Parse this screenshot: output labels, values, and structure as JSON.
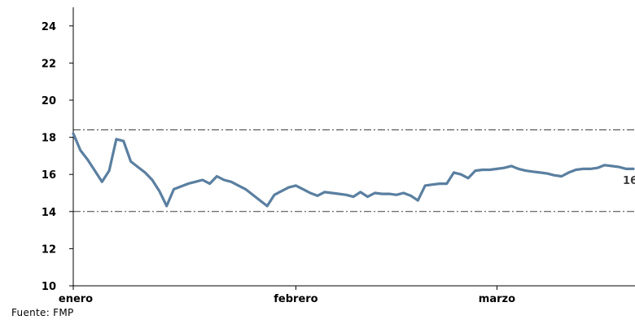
{
  "chart_data": {
    "type": "line",
    "title": "",
    "xlabel": "",
    "ylabel": "",
    "ylim": [
      10,
      25
    ],
    "yticks": [
      10,
      12,
      14,
      16,
      18,
      20,
      22,
      24
    ],
    "xticks": [
      {
        "label": "enero",
        "index": 0
      },
      {
        "label": "febrero",
        "index": 31
      },
      {
        "label": "marzo",
        "index": 59
      }
    ],
    "x_range": [
      0,
      78
    ],
    "reference_lines": [
      18.4,
      14.0
    ],
    "grid": false,
    "line_color": "#5a7fa0",
    "reference_color": "#404040",
    "end_label": "16",
    "series": [
      {
        "points": [
          [
            0,
            18.2
          ],
          [
            1,
            17.3
          ],
          [
            2,
            16.8
          ],
          [
            3,
            16.2
          ],
          [
            4,
            15.6
          ],
          [
            5,
            16.2
          ],
          [
            6,
            17.9
          ],
          [
            7,
            17.8
          ],
          [
            8,
            16.7
          ],
          [
            9,
            16.4
          ],
          [
            10,
            16.1
          ],
          [
            11,
            15.7
          ],
          [
            12,
            15.1
          ],
          [
            13,
            14.3
          ],
          [
            14,
            15.2
          ],
          [
            15,
            15.35
          ],
          [
            16,
            15.5
          ],
          [
            17,
            15.6
          ],
          [
            18,
            15.7
          ],
          [
            19,
            15.5
          ],
          [
            20,
            15.9
          ],
          [
            21,
            15.7
          ],
          [
            22,
            15.6
          ],
          [
            23,
            15.4
          ],
          [
            24,
            15.2
          ],
          [
            25,
            14.9
          ],
          [
            26,
            14.6
          ],
          [
            27,
            14.3
          ],
          [
            28,
            14.9
          ],
          [
            29,
            15.1
          ],
          [
            30,
            15.3
          ],
          [
            31,
            15.4
          ],
          [
            32,
            15.2
          ],
          [
            33,
            15.0
          ],
          [
            34,
            14.85
          ],
          [
            35,
            15.05
          ],
          [
            36,
            15.0
          ],
          [
            37,
            14.95
          ],
          [
            38,
            14.9
          ],
          [
            39,
            14.8
          ],
          [
            40,
            15.05
          ],
          [
            41,
            14.8
          ],
          [
            42,
            15.0
          ],
          [
            43,
            14.95
          ],
          [
            44,
            14.95
          ],
          [
            45,
            14.9
          ],
          [
            46,
            15.0
          ],
          [
            47,
            14.85
          ],
          [
            48,
            14.6
          ],
          [
            49,
            15.4
          ],
          [
            50,
            15.45
          ],
          [
            51,
            15.5
          ],
          [
            52,
            15.5
          ],
          [
            53,
            16.1
          ],
          [
            54,
            16.0
          ],
          [
            55,
            15.8
          ],
          [
            56,
            16.2
          ],
          [
            57,
            16.25
          ],
          [
            58,
            16.25
          ],
          [
            59,
            16.3
          ],
          [
            60,
            16.35
          ],
          [
            61,
            16.45
          ],
          [
            62,
            16.3
          ],
          [
            63,
            16.2
          ],
          [
            64,
            16.15
          ],
          [
            65,
            16.1
          ],
          [
            66,
            16.05
          ],
          [
            67,
            15.95
          ],
          [
            68,
            15.9
          ],
          [
            69,
            16.1
          ],
          [
            70,
            16.25
          ],
          [
            71,
            16.3
          ],
          [
            72,
            16.3
          ],
          [
            73,
            16.35
          ],
          [
            74,
            16.5
          ],
          [
            75,
            16.45
          ],
          [
            76,
            16.4
          ],
          [
            77,
            16.3
          ],
          [
            78,
            16.3
          ]
        ]
      }
    ]
  },
  "source_note": "Fuente: FMP"
}
